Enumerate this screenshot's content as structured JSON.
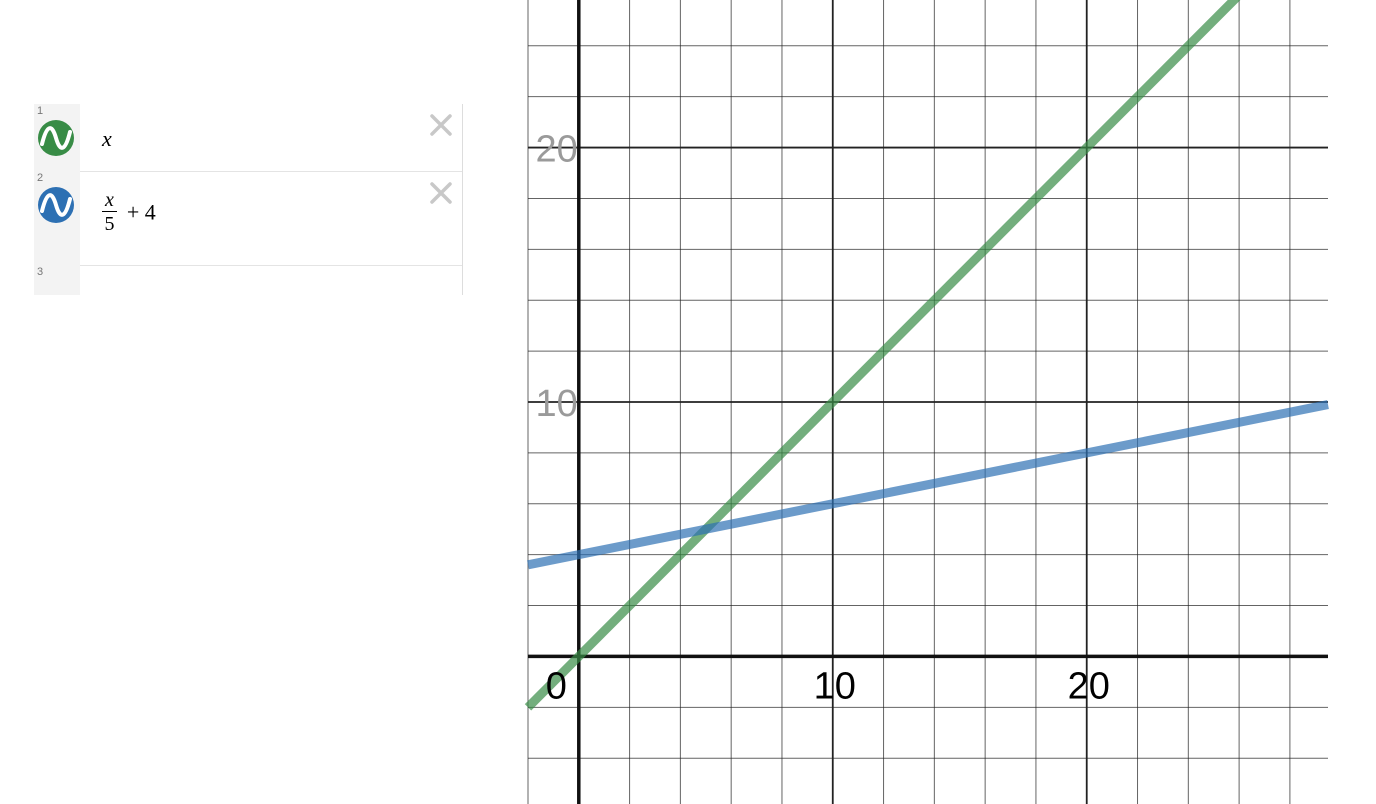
{
  "expressions": [
    {
      "num": "1",
      "var": "x",
      "icon": "sine-wave-icon",
      "color": "#388c46"
    },
    {
      "num": "2",
      "numerator": "x",
      "denominator": "5",
      "rest": "+ 4",
      "icon": "sine-wave-icon",
      "color": "#2d70b3"
    },
    {
      "num": "3"
    }
  ],
  "graph": {
    "x_ticks": [
      "0",
      "10",
      "20"
    ],
    "y_ticks": [
      "10",
      "20"
    ],
    "grid_color": "#222222",
    "axis_color": "#111111"
  },
  "chart_data": {
    "type": "line",
    "title": "",
    "xlabel": "",
    "ylabel": "",
    "xlim": [
      -2,
      29.5
    ],
    "ylim": [
      -5.8,
      25.8
    ],
    "grid": true,
    "series": [
      {
        "color": "#388c46",
        "x": [
          -2,
          29.5
        ],
        "y": [
          -2,
          29.5
        ]
      },
      {
        "color": "#2d70b3",
        "x": [
          -2,
          29.5
        ],
        "y": [
          3.6,
          9.9
        ]
      }
    ]
  }
}
